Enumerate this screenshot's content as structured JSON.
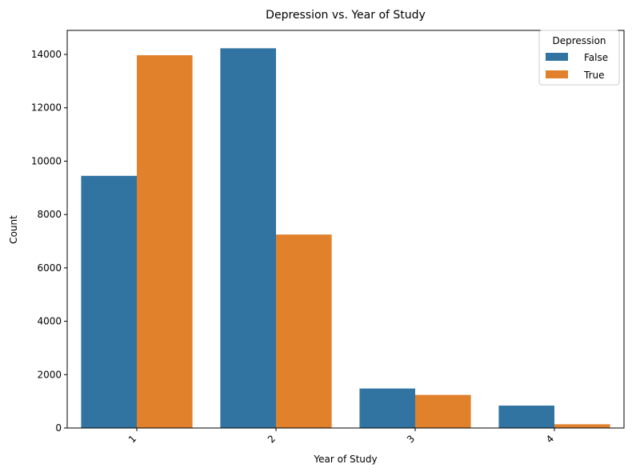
{
  "chart_data": {
    "type": "bar",
    "title": "Depression vs. Year of Study",
    "xlabel": "Year of Study",
    "ylabel": "Count",
    "categories": [
      "1",
      "2",
      "3",
      "4"
    ],
    "series": [
      {
        "name": "False",
        "color": "#3274a1",
        "values": [
          9450,
          14230,
          1480,
          840
        ]
      },
      {
        "name": "True",
        "color": "#e1812c",
        "values": [
          13970,
          7250,
          1240,
          140
        ]
      }
    ],
    "ylim": [
      0,
      14900
    ],
    "yticks": [
      0,
      2000,
      4000,
      6000,
      8000,
      10000,
      12000,
      14000
    ],
    "legend": {
      "title": "Depression",
      "placement": "top-right"
    },
    "grid": false
  }
}
